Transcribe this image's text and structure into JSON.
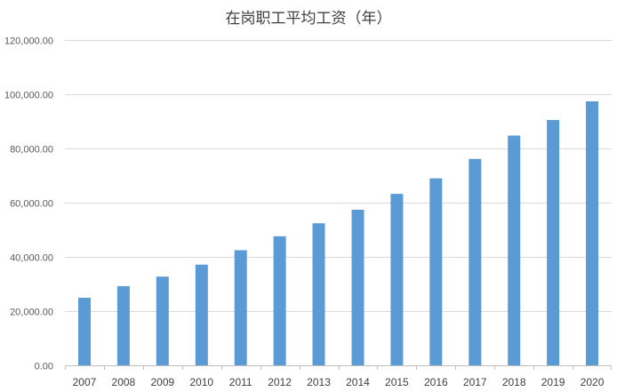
{
  "chart_data": {
    "type": "bar",
    "title": "在岗职工平均工资（年）",
    "xlabel": "",
    "ylabel": "",
    "categories": [
      "2007",
      "2008",
      "2009",
      "2010",
      "2011",
      "2012",
      "2013",
      "2014",
      "2015",
      "2016",
      "2017",
      "2018",
      "2019",
      "2020"
    ],
    "values": [
      24932,
      29229,
      32736,
      37147,
      42452,
      47593,
      52388,
      57361,
      63241,
      68993,
      76121,
      84744,
      90501,
      97379
    ],
    "ylim": [
      0,
      120000
    ],
    "yticks": [
      0,
      20000,
      40000,
      60000,
      80000,
      100000,
      120000
    ],
    "ytick_labels": [
      "0.00",
      "20,000.00",
      "40,000.00",
      "60,000.00",
      "80,000.00",
      "100,000.00",
      "120,000.00"
    ],
    "grid": true,
    "legend": "none",
    "bar_color": "#5b9bd5",
    "grid_color": "#d9d9d9",
    "axis_color": "#bfbfbf"
  }
}
